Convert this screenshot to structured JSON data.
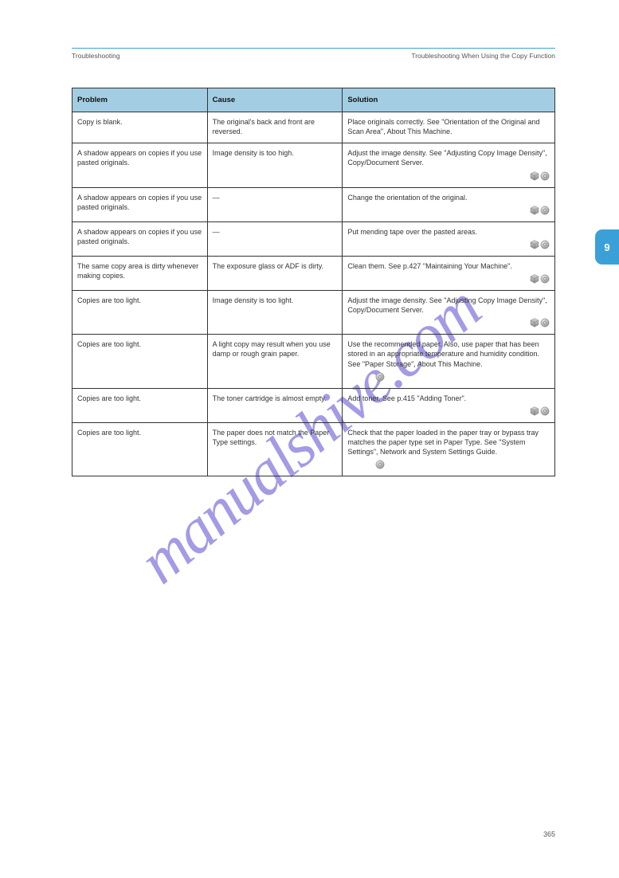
{
  "header": {
    "left": "Troubleshooting",
    "right": "Troubleshooting When Using the Copy Function"
  },
  "sideTab": "9",
  "watermark": "manualshive.com",
  "table": {
    "columns": [
      "Problem",
      "Cause",
      "Solution"
    ],
    "rows": [
      {
        "c1": "Copy is blank.",
        "c2": "The original's back and front are reversed.",
        "c3": "Place originals correctly. See \"Orientation of the Original and Scan Area\", About This Machine.",
        "icons": [],
        "iconPos": "end"
      },
      {
        "c1": "A shadow appears on copies if you use pasted originals.",
        "c2": "Image density is too high.",
        "c3": "Adjust the image density. See \"Adjusting Copy Image Density\", Copy/Document Server.",
        "icons": [
          "cube",
          "disc"
        ],
        "iconPos": "end"
      },
      {
        "c1": "A shadow appears on copies if you use pasted originals.",
        "c2": "—",
        "c3": "Change the orientation of the original.",
        "icons": [
          "cube",
          "disc"
        ],
        "iconPos": "end"
      },
      {
        "c1": "A shadow appears on copies if you use pasted originals.",
        "c2": "—",
        "c3": "Put mending tape over the pasted areas.",
        "icons": [
          "cube",
          "disc"
        ],
        "iconPos": "end"
      },
      {
        "c1": "The same copy area is dirty whenever making copies.",
        "c2": "The exposure glass or ADF is dirty.",
        "c3": "Clean them. See p.427 \"Maintaining Your Machine\".",
        "icons": [
          "cube",
          "disc"
        ],
        "iconPos": "end"
      },
      {
        "c1": "Copies are too light.",
        "c2": "Image density is too light.",
        "c3": "Adjust the image density. See \"Adjusting Copy Image Density\", Copy/Document Server.",
        "icons": [
          "cube",
          "disc"
        ],
        "iconPos": "end"
      },
      {
        "c1": "Copies are too light.",
        "c2": "A light copy may result when you use damp or rough grain paper.",
        "c3": "Use the recommended paper. Also, use paper that has been stored in an appropriate temperature and humidity condition. See \"Paper Storage\", About This Machine.",
        "icons": [
          "disc"
        ],
        "iconPos": "center"
      },
      {
        "c1": "Copies are too light.",
        "c2": "The toner cartridge is almost empty.",
        "c3": "Add toner. See p.415 \"Adding Toner\".",
        "icons": [
          "cube",
          "disc"
        ],
        "iconPos": "end"
      },
      {
        "c1": "Copies are too light.",
        "c2": "The paper does not match the Paper Type settings.",
        "c3": "Check that the paper loaded in the paper tray or bypass tray matches the paper type set in Paper Type. See \"System Settings\", Network and System Settings Guide.",
        "icons": [
          "disc"
        ],
        "iconPos": "center"
      }
    ]
  },
  "footer": "365",
  "colors": {
    "headerBg": "#a3cde2",
    "rule": "#3ca0d8",
    "sideTab": "#3ca0d8",
    "watermark": "#6b5fd8",
    "border": "#333333",
    "text": "#333333"
  }
}
